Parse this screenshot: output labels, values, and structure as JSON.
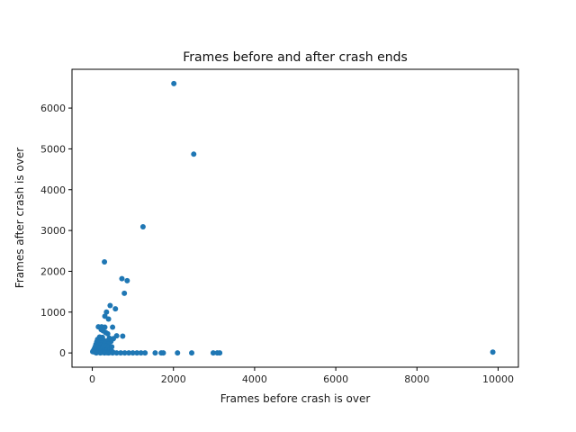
{
  "chart_data": {
    "type": "scatter",
    "title": "Frames before and after crash ends",
    "xlabel": "Frames before crash is over",
    "ylabel": "Frames after crash is over",
    "xlim": [
      -500,
      10500
    ],
    "ylim": [
      -350,
      6950
    ],
    "xticks": [
      0,
      2000,
      4000,
      6000,
      8000,
      10000
    ],
    "yticks": [
      0,
      1000,
      2000,
      3000,
      4000,
      5000,
      6000
    ],
    "xtick_labels": [
      "0",
      "2000",
      "4000",
      "6000",
      "8000",
      "10000"
    ],
    "ytick_labels": [
      "0",
      "1000",
      "2000",
      "3000",
      "4000",
      "5000",
      "6000"
    ],
    "marker_color": "#1f77b4",
    "grid": false,
    "series": [
      {
        "points": [
          [
            2010,
            6600
          ],
          [
            2500,
            4870
          ],
          [
            1250,
            3090
          ],
          [
            300,
            2230
          ],
          [
            730,
            1820
          ],
          [
            860,
            1770
          ],
          [
            790,
            1460
          ],
          [
            440,
            1160
          ],
          [
            570,
            1080
          ],
          [
            350,
            1000
          ],
          [
            310,
            900
          ],
          [
            400,
            830
          ],
          [
            150,
            640
          ],
          [
            230,
            640
          ],
          [
            310,
            630
          ],
          [
            500,
            630
          ],
          [
            220,
            570
          ],
          [
            270,
            540
          ],
          [
            330,
            500
          ],
          [
            380,
            470
          ],
          [
            600,
            420
          ],
          [
            750,
            410
          ],
          [
            180,
            390
          ],
          [
            250,
            380
          ],
          [
            420,
            360
          ],
          [
            520,
            350
          ],
          [
            130,
            330
          ],
          [
            200,
            310
          ],
          [
            290,
            300
          ],
          [
            360,
            290
          ],
          [
            460,
            280
          ],
          [
            110,
            270
          ],
          [
            170,
            250
          ],
          [
            240,
            240
          ],
          [
            320,
            230
          ],
          [
            400,
            220
          ],
          [
            90,
            210
          ],
          [
            150,
            200
          ],
          [
            210,
            190
          ],
          [
            280,
            180
          ],
          [
            350,
            170
          ],
          [
            420,
            160
          ],
          [
            480,
            150
          ],
          [
            70,
            150
          ],
          [
            130,
            140
          ],
          [
            190,
            130
          ],
          [
            250,
            120
          ],
          [
            310,
            110
          ],
          [
            370,
            100
          ],
          [
            50,
            100
          ],
          [
            110,
            90
          ],
          [
            170,
            80
          ],
          [
            230,
            75
          ],
          [
            290,
            70
          ],
          [
            350,
            60
          ],
          [
            410,
            55
          ],
          [
            470,
            50
          ],
          [
            30,
            60
          ],
          [
            90,
            50
          ],
          [
            150,
            45
          ],
          [
            210,
            40
          ],
          [
            270,
            35
          ],
          [
            330,
            30
          ],
          [
            390,
            25
          ],
          [
            450,
            20
          ],
          [
            510,
            18
          ],
          [
            10,
            30
          ],
          [
            60,
            20
          ],
          [
            120,
            15
          ],
          [
            180,
            12
          ],
          [
            240,
            10
          ],
          [
            300,
            8
          ],
          [
            360,
            6
          ],
          [
            420,
            5
          ],
          [
            100,
            0
          ],
          [
            200,
            0
          ],
          [
            300,
            0
          ],
          [
            400,
            0
          ],
          [
            500,
            0
          ],
          [
            600,
            0
          ],
          [
            700,
            0
          ],
          [
            800,
            0
          ],
          [
            900,
            0
          ],
          [
            1000,
            0
          ],
          [
            1100,
            0
          ],
          [
            1200,
            0
          ],
          [
            1300,
            0
          ],
          [
            1550,
            0
          ],
          [
            1700,
            0
          ],
          [
            1750,
            0
          ],
          [
            2100,
            0
          ],
          [
            2450,
            0
          ],
          [
            2980,
            0
          ],
          [
            3080,
            0
          ],
          [
            3140,
            0
          ],
          [
            9870,
            20
          ]
        ]
      }
    ]
  }
}
